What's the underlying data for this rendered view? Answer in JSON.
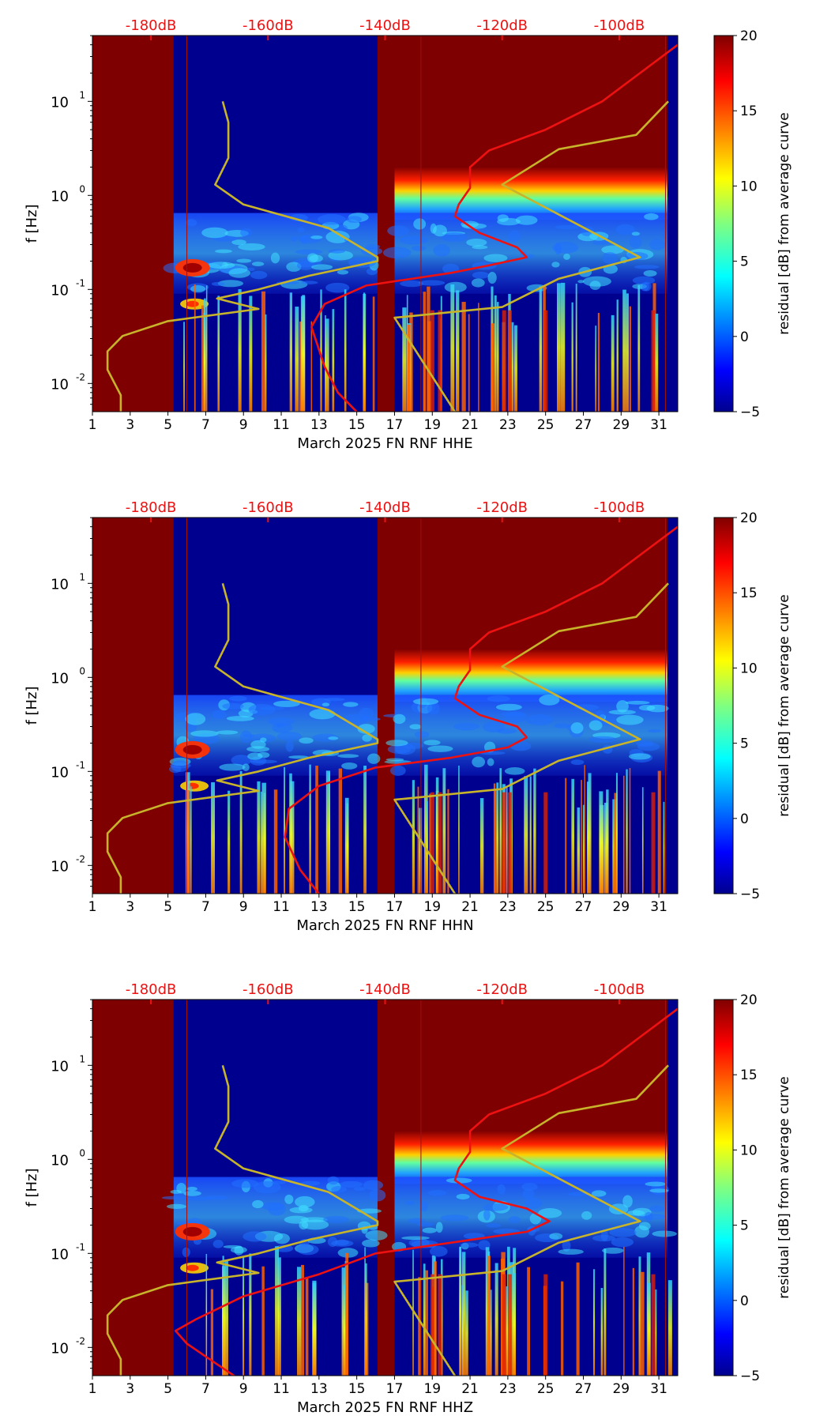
{
  "chart_data": [
    {
      "type": "heatmap",
      "component": "HHE",
      "xlabel": "March 2025 FN RNF  HHE",
      "ylabel": "f [Hz]",
      "xlim": [
        1,
        32
      ],
      "ylim_log10": [
        -2.3,
        1.7
      ],
      "x_ticks": [
        "1",
        "3",
        "5",
        "7",
        "9",
        "11",
        "13",
        "15",
        "17",
        "19",
        "21",
        "23",
        "25",
        "27",
        "29",
        "31"
      ],
      "y_ticks": [
        {
          "exp": "-2",
          "label": "10"
        },
        {
          "exp": "-1",
          "label": "10"
        },
        {
          "exp": "0",
          "label": "10"
        },
        {
          "exp": "1",
          "label": "10"
        }
      ],
      "top_axis_ticks": [
        "-180dB",
        "-160dB",
        "-140dB",
        "-120dB",
        "-100dB"
      ],
      "colorbar": {
        "label": "residual [dB] from average curve",
        "min": -5,
        "max": 20,
        "ticks": [
          "20",
          "15",
          "10",
          "5",
          "0",
          "−5"
        ]
      },
      "missing_data_days": [
        [
          1,
          5.3
        ],
        [
          16.1,
          17.0
        ]
      ],
      "peterson_curve": [
        [
          2.5,
          0.005
        ],
        [
          2.5,
          0.0075
        ],
        [
          1.8,
          0.014
        ],
        [
          1.8,
          0.022
        ],
        [
          2.6,
          0.032
        ],
        [
          5,
          0.046
        ],
        [
          9.8,
          0.062
        ],
        [
          7.6,
          0.08
        ],
        [
          9.8,
          0.1
        ],
        [
          12.5,
          0.14
        ],
        [
          16.1,
          0.2
        ],
        [
          16.1,
          0.22
        ],
        [
          13.5,
          0.45
        ],
        [
          9,
          0.8
        ],
        [
          7.5,
          1.3
        ],
        [
          8.2,
          2.5
        ],
        [
          8.2,
          6
        ],
        [
          7.9,
          10
        ]
      ],
      "peterson_curve_right": [
        [
          20.2,
          0.005
        ],
        [
          17,
          0.05
        ],
        [
          22.7,
          0.065
        ],
        [
          25.7,
          0.13
        ],
        [
          30,
          0.22
        ],
        [
          22.7,
          1.3
        ],
        [
          25.7,
          3.1
        ],
        [
          29.8,
          4.4
        ],
        [
          31.5,
          10
        ]
      ],
      "median_curve": [
        [
          15,
          0.005
        ],
        [
          14,
          0.008
        ],
        [
          13.3,
          0.015
        ],
        [
          12.6,
          0.04
        ],
        [
          13.3,
          0.07
        ],
        [
          15.5,
          0.11
        ],
        [
          20,
          0.15
        ],
        [
          22,
          0.18
        ],
        [
          24,
          0.22
        ],
        [
          23.5,
          0.28
        ],
        [
          21.5,
          0.4
        ],
        [
          20.2,
          0.6
        ],
        [
          20.4,
          0.8
        ],
        [
          21,
          1.2
        ],
        [
          21,
          2
        ],
        [
          22,
          3
        ],
        [
          25,
          5
        ],
        [
          28,
          10
        ],
        [
          30,
          20
        ],
        [
          32,
          40
        ]
      ]
    },
    {
      "type": "heatmap",
      "component": "HHN",
      "xlabel": "March 2025 FN RNF  HHN",
      "ylabel": "f [Hz]",
      "xlim": [
        1,
        32
      ],
      "ylim_log10": [
        -2.3,
        1.7
      ],
      "x_ticks": [
        "1",
        "3",
        "5",
        "7",
        "9",
        "11",
        "13",
        "15",
        "17",
        "19",
        "21",
        "23",
        "25",
        "27",
        "29",
        "31"
      ],
      "y_ticks": [
        {
          "exp": "-2",
          "label": "10"
        },
        {
          "exp": "-1",
          "label": "10"
        },
        {
          "exp": "0",
          "label": "10"
        },
        {
          "exp": "1",
          "label": "10"
        }
      ],
      "top_axis_ticks": [
        "-180dB",
        "-160dB",
        "-140dB",
        "-120dB",
        "-100dB"
      ],
      "colorbar": {
        "label": "residual [dB] from average curve",
        "min": -5,
        "max": 20,
        "ticks": [
          "20",
          "15",
          "10",
          "5",
          "0",
          "−5"
        ]
      },
      "missing_data_days": [
        [
          1,
          5.3
        ],
        [
          16.1,
          17.0
        ]
      ],
      "peterson_curve": [
        [
          2.5,
          0.005
        ],
        [
          2.5,
          0.0075
        ],
        [
          1.8,
          0.014
        ],
        [
          1.8,
          0.022
        ],
        [
          2.6,
          0.032
        ],
        [
          5,
          0.046
        ],
        [
          9.8,
          0.062
        ],
        [
          7.6,
          0.08
        ],
        [
          9.8,
          0.1
        ],
        [
          12.5,
          0.14
        ],
        [
          16.1,
          0.2
        ],
        [
          16.1,
          0.22
        ],
        [
          13.5,
          0.45
        ],
        [
          9,
          0.8
        ],
        [
          7.5,
          1.3
        ],
        [
          8.2,
          2.5
        ],
        [
          8.2,
          6
        ],
        [
          7.9,
          10
        ]
      ],
      "peterson_curve_right": [
        [
          20.2,
          0.005
        ],
        [
          17,
          0.05
        ],
        [
          22.7,
          0.065
        ],
        [
          25.7,
          0.13
        ],
        [
          30,
          0.22
        ],
        [
          22.7,
          1.3
        ],
        [
          25.7,
          3.1
        ],
        [
          29.8,
          4.4
        ],
        [
          31.5,
          10
        ]
      ],
      "median_curve": [
        [
          13,
          0.005
        ],
        [
          12,
          0.009
        ],
        [
          11.2,
          0.02
        ],
        [
          11.4,
          0.04
        ],
        [
          13,
          0.07
        ],
        [
          16,
          0.11
        ],
        [
          20,
          0.14
        ],
        [
          23,
          0.18
        ],
        [
          24,
          0.23
        ],
        [
          23.5,
          0.3
        ],
        [
          21.5,
          0.4
        ],
        [
          20.2,
          0.6
        ],
        [
          20.4,
          0.8
        ],
        [
          21,
          1.2
        ],
        [
          21,
          2
        ],
        [
          22,
          3
        ],
        [
          25,
          5
        ],
        [
          28,
          10
        ],
        [
          30,
          20
        ],
        [
          32,
          40
        ]
      ]
    },
    {
      "type": "heatmap",
      "component": "HHZ",
      "xlabel": "March 2025 FN RNF  HHZ",
      "ylabel": "f [Hz]",
      "xlim": [
        1,
        32
      ],
      "ylim_log10": [
        -2.3,
        1.7
      ],
      "x_ticks": [
        "1",
        "3",
        "5",
        "7",
        "9",
        "11",
        "13",
        "15",
        "17",
        "19",
        "21",
        "23",
        "25",
        "27",
        "29",
        "31"
      ],
      "y_ticks": [
        {
          "exp": "-2",
          "label": "10"
        },
        {
          "exp": "-1",
          "label": "10"
        },
        {
          "exp": "0",
          "label": "10"
        },
        {
          "exp": "1",
          "label": "10"
        }
      ],
      "top_axis_ticks": [
        "-180dB",
        "-160dB",
        "-140dB",
        "-120dB",
        "-100dB"
      ],
      "colorbar": {
        "label": "residual [dB] from average curve",
        "min": -5,
        "max": 20,
        "ticks": [
          "20",
          "15",
          "10",
          "5",
          "0",
          "−5"
        ]
      },
      "missing_data_days": [
        [
          1,
          5.3
        ],
        [
          16.1,
          17.0
        ]
      ],
      "peterson_curve": [
        [
          2.5,
          0.005
        ],
        [
          2.5,
          0.0075
        ],
        [
          1.8,
          0.014
        ],
        [
          1.8,
          0.022
        ],
        [
          2.6,
          0.032
        ],
        [
          5,
          0.046
        ],
        [
          9.8,
          0.062
        ],
        [
          7.6,
          0.08
        ],
        [
          9.8,
          0.1
        ],
        [
          12.5,
          0.14
        ],
        [
          16.1,
          0.2
        ],
        [
          16.1,
          0.22
        ],
        [
          13.5,
          0.45
        ],
        [
          9,
          0.8
        ],
        [
          7.5,
          1.3
        ],
        [
          8.2,
          2.5
        ],
        [
          8.2,
          6
        ],
        [
          7.9,
          10
        ]
      ],
      "peterson_curve_right": [
        [
          20.2,
          0.005
        ],
        [
          17,
          0.05
        ],
        [
          22.7,
          0.065
        ],
        [
          25.7,
          0.13
        ],
        [
          30,
          0.22
        ],
        [
          22.7,
          1.3
        ],
        [
          25.7,
          3.1
        ],
        [
          29.8,
          4.4
        ],
        [
          31.5,
          10
        ]
      ],
      "median_curve": [
        [
          8.5,
          0.005
        ],
        [
          7,
          0.008
        ],
        [
          6,
          0.011
        ],
        [
          5.4,
          0.015
        ],
        [
          6.5,
          0.02
        ],
        [
          9,
          0.035
        ],
        [
          13,
          0.06
        ],
        [
          16,
          0.1
        ],
        [
          20,
          0.13
        ],
        [
          24,
          0.17
        ],
        [
          25.2,
          0.22
        ],
        [
          24,
          0.3
        ],
        [
          21.5,
          0.4
        ],
        [
          20.2,
          0.6
        ],
        [
          20.4,
          0.8
        ],
        [
          21,
          1.2
        ],
        [
          21,
          2
        ],
        [
          22,
          3
        ],
        [
          25,
          5
        ],
        [
          28,
          10
        ],
        [
          30,
          20
        ],
        [
          32,
          40
        ]
      ]
    }
  ],
  "colors": {
    "missing": "#7f0000",
    "background": "#00008f",
    "peterson": "#c8b42a",
    "median": "#ee1111",
    "top_axis": "#ee1111"
  }
}
